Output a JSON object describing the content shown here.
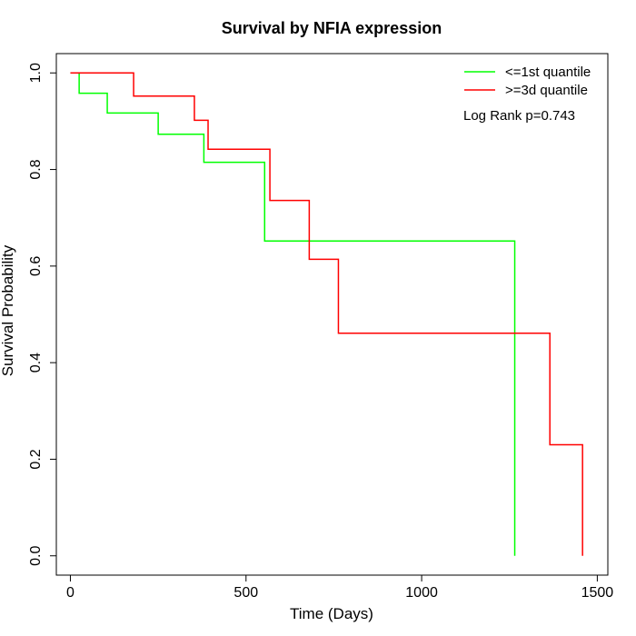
{
  "chart_data": {
    "type": "line",
    "step": true,
    "title": "Survival by NFIA expression",
    "xlabel": "Time (Days)",
    "ylabel": "Survival Probability",
    "xlim": [
      -40,
      1530
    ],
    "ylim": [
      -0.04,
      1.04
    ],
    "xticks": [
      0,
      500,
      1000,
      1500
    ],
    "xtick_labels": [
      "0",
      "500",
      "1000",
      "1500"
    ],
    "yticks": [
      0.0,
      0.2,
      0.4,
      0.6,
      0.8,
      1.0
    ],
    "ytick_labels": [
      "0.0",
      "0.2",
      "0.4",
      "0.6",
      "0.8",
      "1.0"
    ],
    "grid": false,
    "legend_position": "top-right",
    "annotation": "Log Rank p=0.743",
    "series": [
      {
        "name": "<=1st quantile",
        "color": "#00ff00",
        "x": [
          0,
          25,
          105,
          250,
          380,
          553,
          1265,
          1265
        ],
        "y": [
          1.0,
          0.958,
          0.917,
          0.873,
          0.815,
          0.652,
          0.652,
          0.0
        ]
      },
      {
        "name": ">=3d quantile",
        "color": "#ff0000",
        "x": [
          0,
          180,
          353,
          392,
          568,
          680,
          763,
          1365,
          1458,
          1458
        ],
        "y": [
          1.0,
          0.952,
          0.902,
          0.842,
          0.736,
          0.614,
          0.461,
          0.23,
          0.23,
          0.0
        ]
      }
    ]
  }
}
